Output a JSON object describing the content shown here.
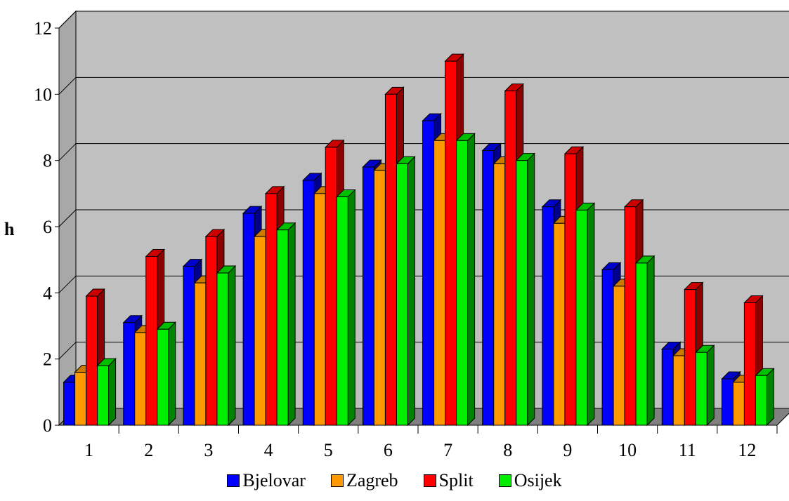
{
  "chart_data": {
    "type": "bar",
    "title": "",
    "xlabel": "",
    "ylabel": "h",
    "ylim": [
      0,
      12
    ],
    "yticks": [
      "0",
      "2",
      "4",
      "6",
      "8",
      "10",
      "12"
    ],
    "categories": [
      "1",
      "2",
      "3",
      "4",
      "5",
      "6",
      "7",
      "8",
      "9",
      "10",
      "11",
      "12"
    ],
    "grid": true,
    "legend_position": "bottom",
    "series": [
      {
        "name": "Bjelovar",
        "color": "#0000ff",
        "values": [
          1.3,
          3.1,
          4.8,
          6.4,
          7.4,
          7.8,
          9.2,
          8.3,
          6.6,
          4.7,
          2.3,
          1.4
        ]
      },
      {
        "name": "Zagreb",
        "color": "#ff9900",
        "values": [
          1.6,
          2.8,
          4.3,
          5.7,
          7.0,
          7.7,
          8.6,
          7.9,
          6.1,
          4.2,
          2.1,
          1.3
        ]
      },
      {
        "name": "Split",
        "color": "#ff0000",
        "values": [
          3.9,
          5.1,
          5.7,
          7.0,
          8.4,
          10.0,
          11.0,
          10.1,
          8.2,
          6.6,
          4.1,
          3.7
        ]
      },
      {
        "name": "Osijek",
        "color": "#00ee00",
        "values": [
          1.8,
          2.9,
          4.6,
          5.9,
          6.9,
          7.9,
          8.6,
          8.0,
          6.5,
          4.9,
          2.2,
          1.5
        ]
      }
    ]
  }
}
